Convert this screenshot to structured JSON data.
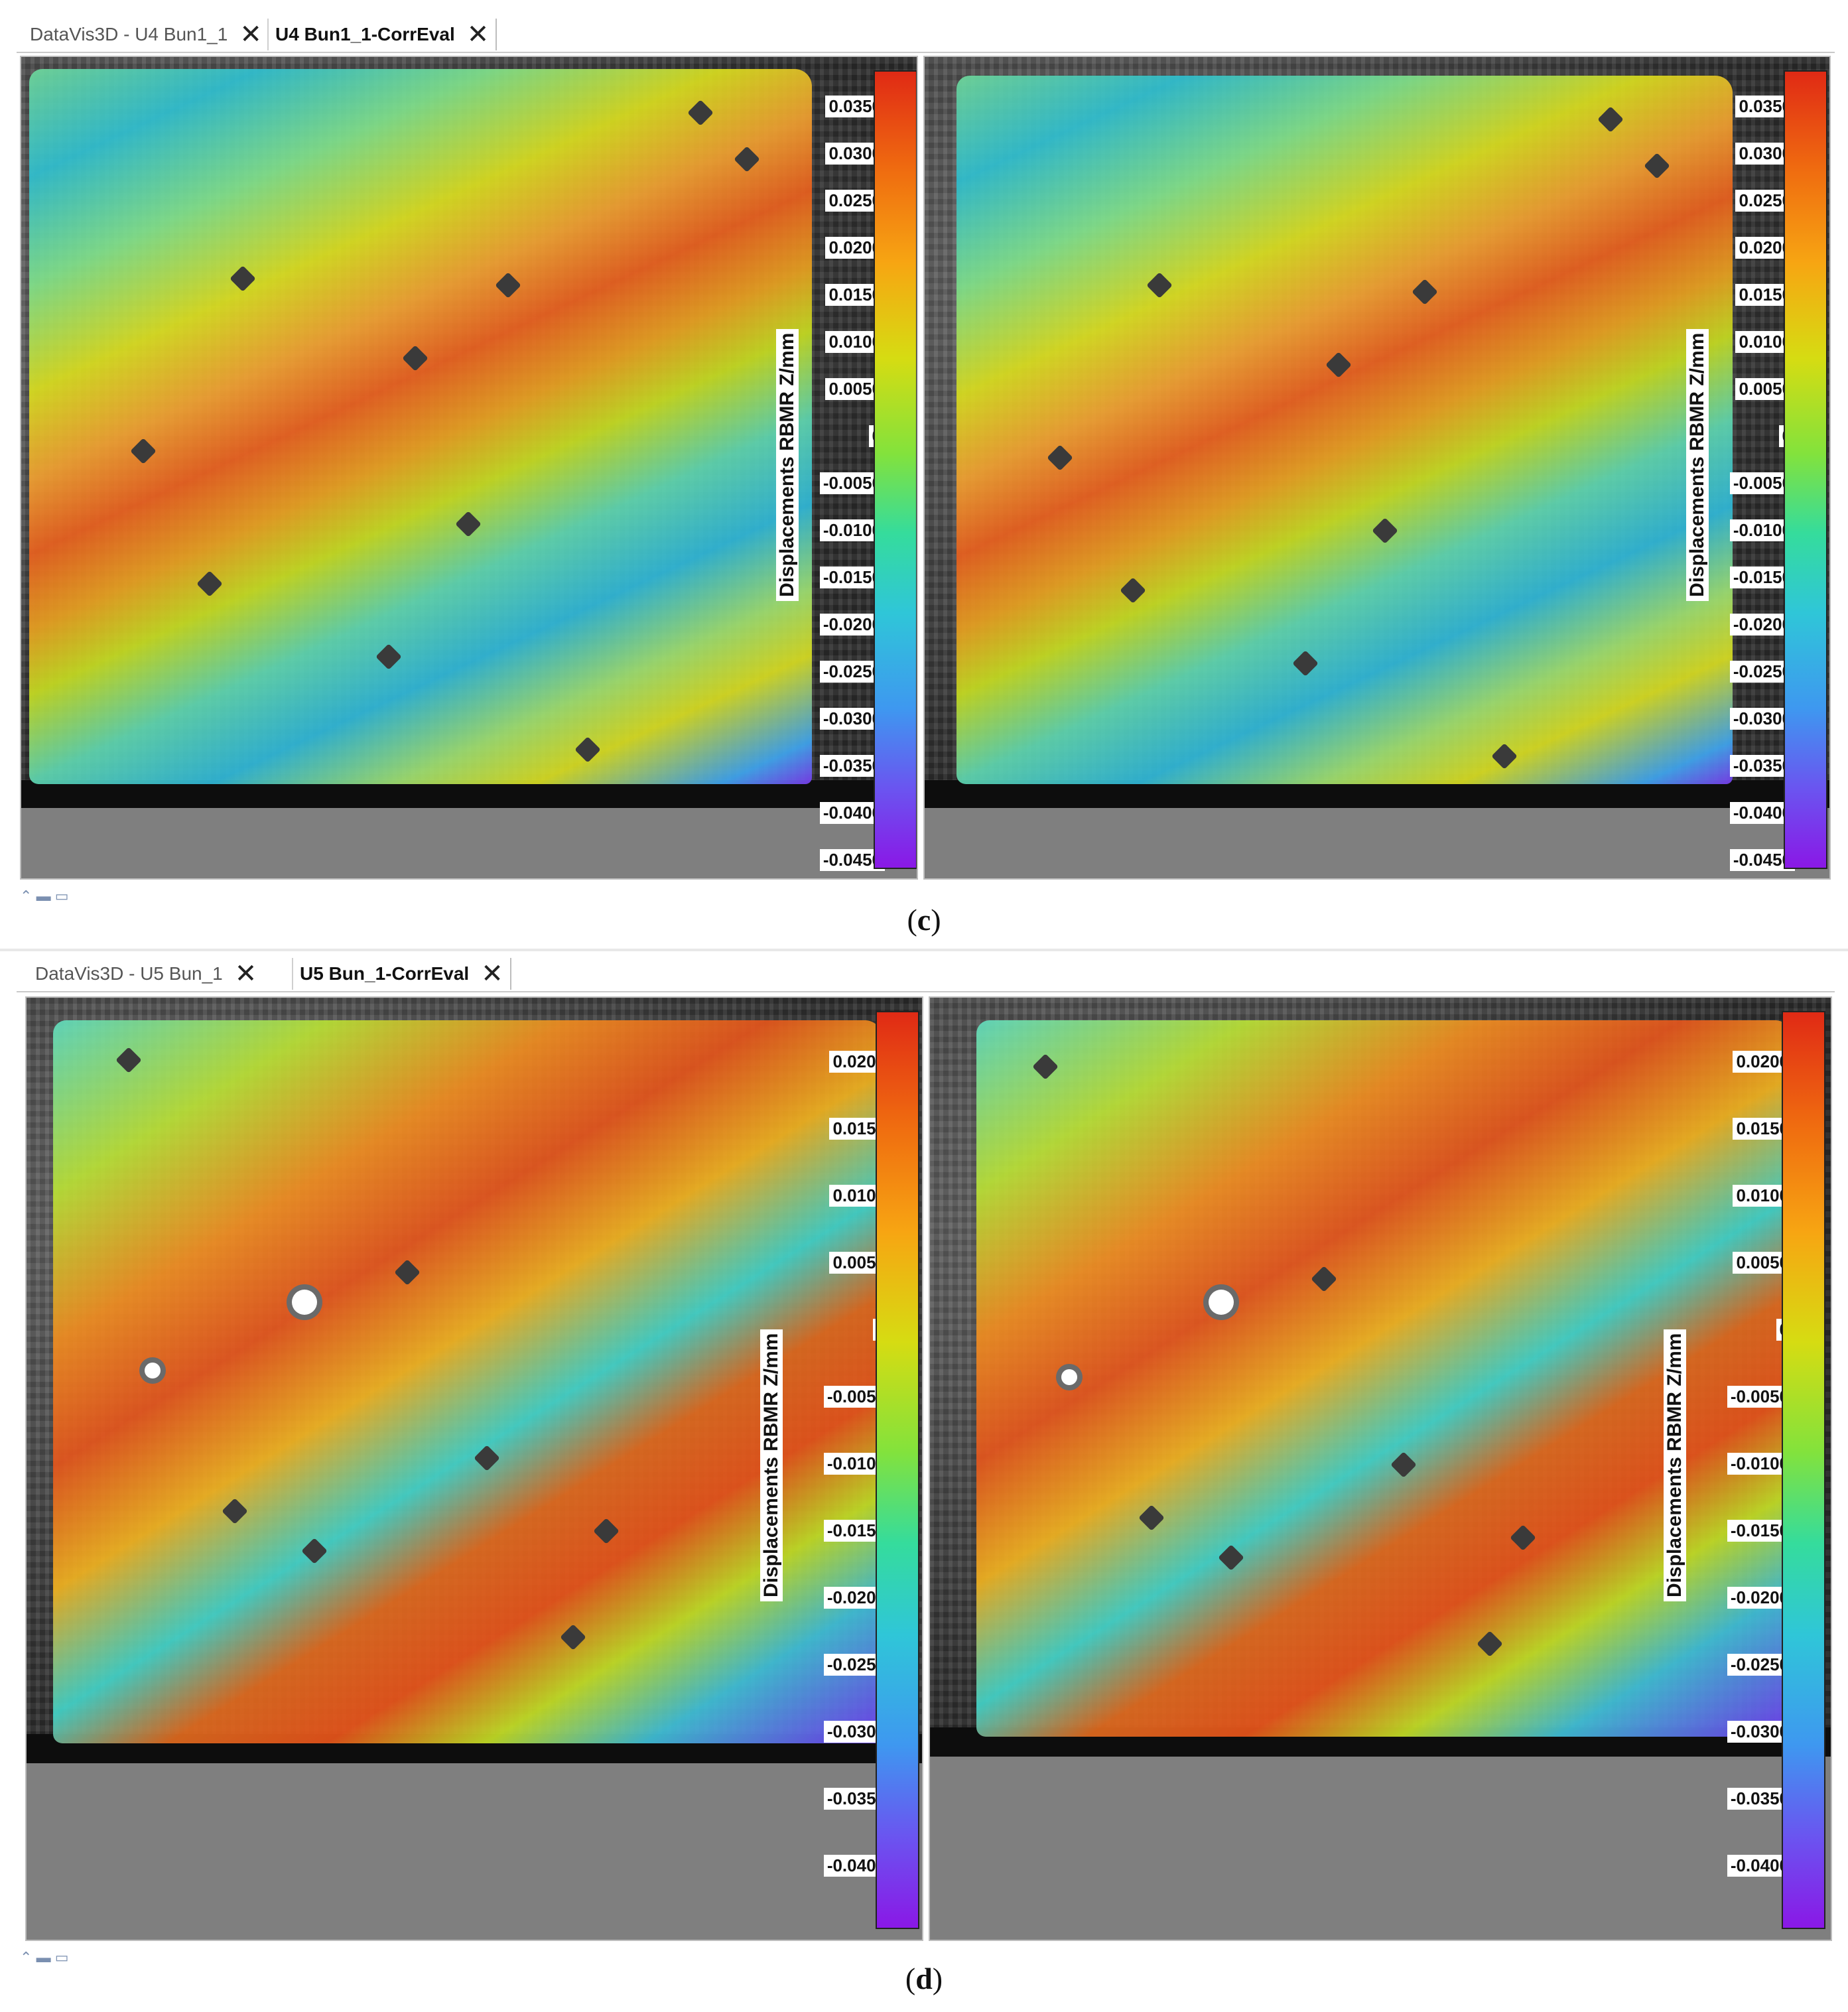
{
  "panel_c": {
    "tabs": [
      {
        "label": "DataVis3D - U4 Bun1_1",
        "active": false
      },
      {
        "label": "U4 Bun1_1-CorrEval",
        "active": true
      }
    ],
    "colorbar_title": "Displacements RBMR Z/mm",
    "ticks": [
      "0.0350",
      "0.0300",
      "0.0250",
      "0.0200",
      "0.0150",
      "0.0100",
      "0.0050",
      "0",
      "-0.0050",
      "-0.0100",
      "-0.0150",
      "-0.0200",
      "-0.0250",
      "-0.0300",
      "-0.0350",
      "-0.0400",
      "-0.0450"
    ],
    "caption_letter": "c"
  },
  "panel_d": {
    "tabs": [
      {
        "label": "DataVis3D - U5 Bun_1",
        "active": false
      },
      {
        "label": "U5 Bun_1-CorrEval",
        "active": true
      }
    ],
    "colorbar_title": "Displacements RBMR Z/mm",
    "ticks": [
      "0.0200",
      "0.0150",
      "0.0100",
      "0.0050",
      "0",
      "-0.0050",
      "-0.0100",
      "-0.0150",
      "-0.0200",
      "-0.0250",
      "-0.0300",
      "-0.0350",
      "-0.0400"
    ],
    "caption_letter": "d"
  },
  "icons": {
    "close": "close-icon",
    "restore": "restore-icon",
    "minimize": "minimize-icon",
    "maximize": "maximize-icon"
  }
}
